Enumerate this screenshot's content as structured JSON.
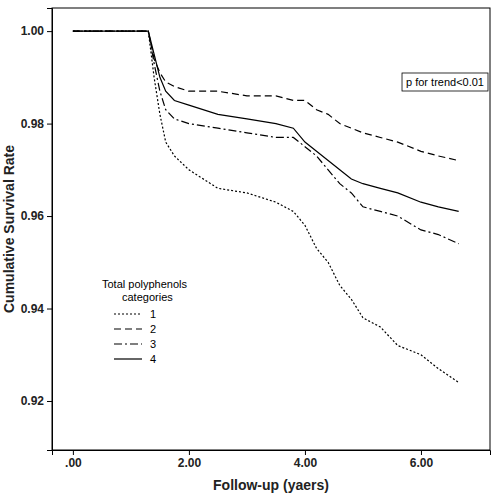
{
  "chart_data": {
    "type": "line",
    "x_label": "Follow-up (yaers)",
    "y_label": "Cumulative Survival Rate",
    "annotation": "p for trend<0.01",
    "legend_title": "Total polyphenols categories",
    "legend": "bottom-left",
    "grid": false,
    "xlim": [
      -0.36,
      7.19
    ],
    "ylim": [
      0.9094,
      1.005
    ],
    "xticks": [
      {
        "value": 0,
        "label": ".00"
      },
      {
        "value": 2,
        "label": "2.00"
      },
      {
        "value": 4,
        "label": "4.00"
      },
      {
        "value": 6,
        "label": "6.00"
      }
    ],
    "yticks": [
      0.92,
      0.94,
      0.96,
      0.98,
      {
        "value": 1,
        "label": "1.00"
      }
    ],
    "x": [
      0,
      1.3,
      1.4,
      1.5,
      1.6,
      1.75,
      2.0,
      2.5,
      3.0,
      3.5,
      3.8,
      4.0,
      4.2,
      4.4,
      4.6,
      4.8,
      5.0,
      5.3,
      5.6,
      6.0,
      6.3,
      6.65
    ],
    "series": [
      {
        "name": "1",
        "color": "#000000",
        "line_style": "dotted",
        "values": [
          1,
          1,
          0.99,
          0.982,
          0.976,
          0.973,
          0.97,
          0.966,
          0.965,
          0.963,
          0.961,
          0.958,
          0.953,
          0.95,
          0.945,
          0.942,
          0.938,
          0.936,
          0.932,
          0.93,
          0.927,
          0.924
        ]
      },
      {
        "name": "2",
        "color": "#000000",
        "line_style": "dashed",
        "values": [
          1,
          1,
          0.994,
          0.991,
          0.989,
          0.988,
          0.987,
          0.987,
          0.986,
          0.986,
          0.985,
          0.985,
          0.983,
          0.982,
          0.98,
          0.979,
          0.978,
          0.977,
          0.976,
          0.974,
          0.973,
          0.972
        ]
      },
      {
        "name": "3",
        "color": "#000000",
        "line_style": "dashdot",
        "values": [
          1,
          1,
          0.993,
          0.987,
          0.983,
          0.981,
          0.98,
          0.979,
          0.978,
          0.977,
          0.977,
          0.975,
          0.973,
          0.97,
          0.967,
          0.965,
          0.962,
          0.961,
          0.96,
          0.957,
          0.956,
          0.954
        ]
      },
      {
        "name": "4",
        "color": "#000000",
        "line_style": "solid",
        "values": [
          1,
          1,
          0.995,
          0.99,
          0.987,
          0.985,
          0.984,
          0.982,
          0.981,
          0.98,
          0.979,
          0.976,
          0.974,
          0.972,
          0.97,
          0.968,
          0.967,
          0.966,
          0.965,
          0.963,
          0.962,
          0.961
        ]
      }
    ]
  }
}
